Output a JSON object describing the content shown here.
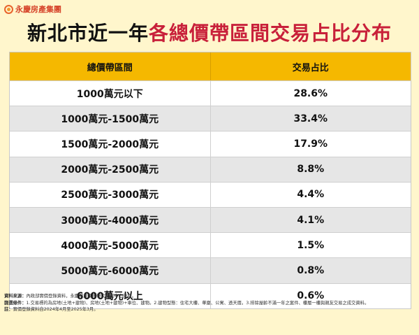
{
  "logo": {
    "text": "永慶房產集團"
  },
  "title": {
    "part1": "新北市近一年",
    "part2": "各總價帶區間交易占比分布"
  },
  "table": {
    "headers": [
      "總價帶區間",
      "交易占比"
    ],
    "rows": [
      [
        "1000萬元以下",
        "28.6%"
      ],
      [
        "1000萬元-1500萬元",
        "33.4%"
      ],
      [
        "1500萬元-2000萬元",
        "17.9%"
      ],
      [
        "2000萬元-2500萬元",
        "8.8%"
      ],
      [
        "2500萬元-3000萬元",
        "4.4%"
      ],
      [
        "3000萬元-4000萬元",
        "4.1%"
      ],
      [
        "4000萬元-5000萬元",
        "1.5%"
      ],
      [
        "5000萬元-6000萬元",
        "0.8%"
      ],
      [
        "6000萬元以上",
        "0.6%"
      ]
    ]
  },
  "notes": {
    "source_label": "資料來源：",
    "source_text": "內政部實價登錄資料，永慶房產集團研究發展中心彙整。",
    "filter_label": "篩選條件：",
    "filter_text": "1.交易標的為房地(土地+建物)、房地(土地+建物)+車位、建物。2.建物型態：住宅大樓、華廈、公寓、透天厝。3.排除屋齡不滿一年之案件、樓層一樓與親友交易之成交資料。",
    "note_label": "註：",
    "note_text": "實價登錄資料自2024年4月至2025年3月。"
  }
}
